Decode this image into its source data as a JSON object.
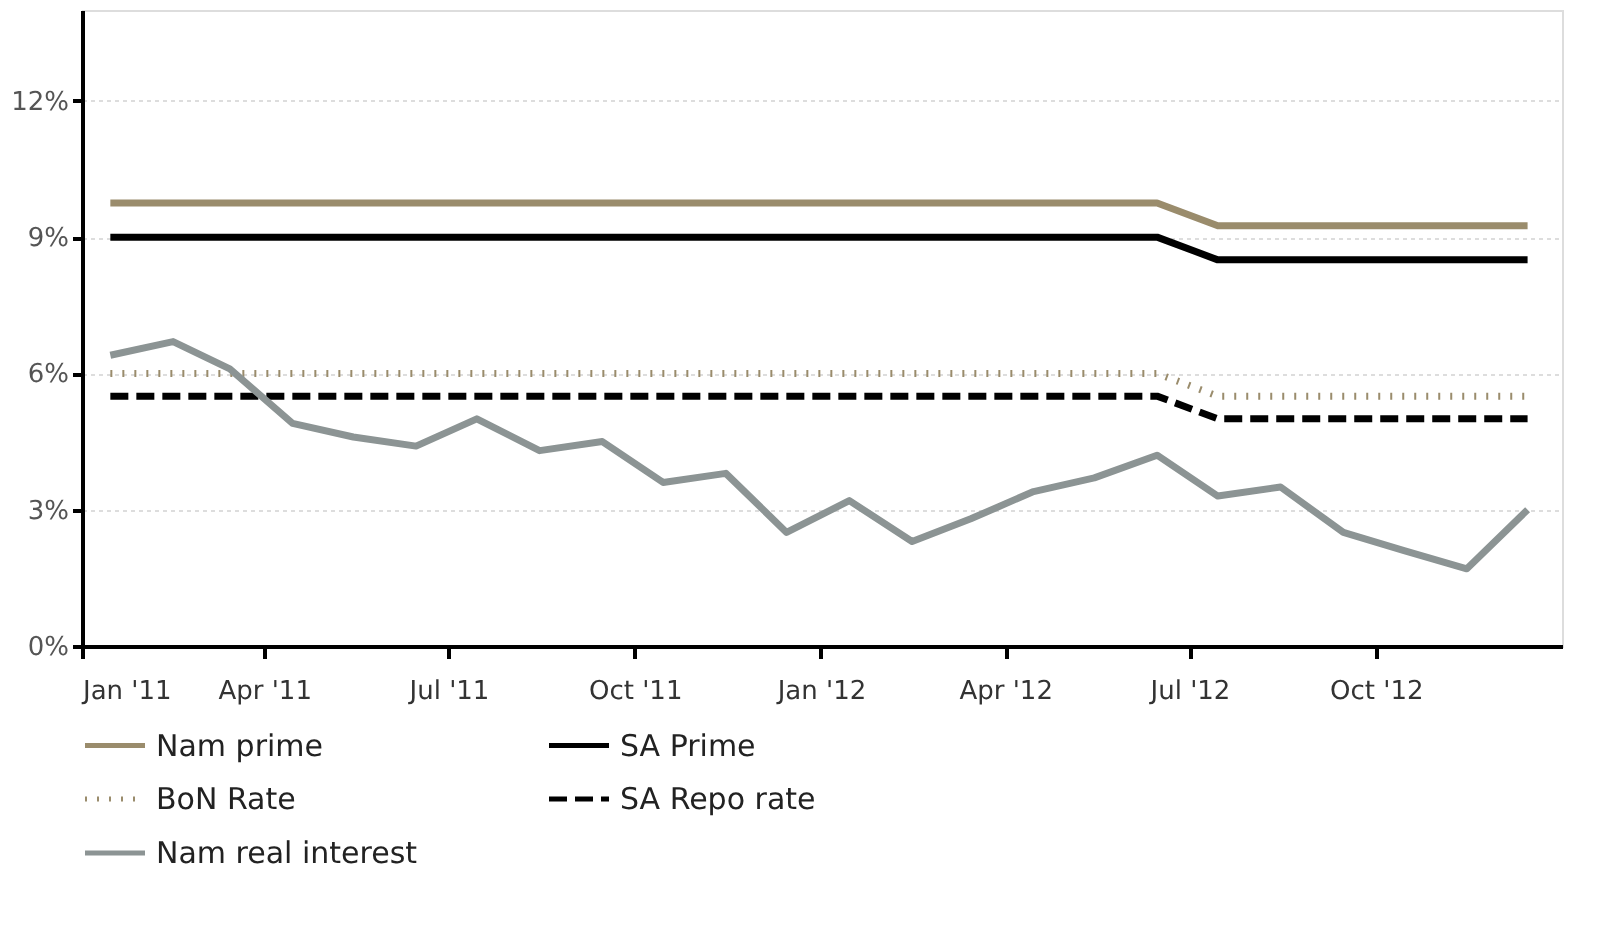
{
  "chart_data": {
    "type": "line",
    "x": [
      "2011-01-15",
      "2011-02-15",
      "2011-03-15",
      "2011-04-15",
      "2011-05-15",
      "2011-06-15",
      "2011-07-15",
      "2011-08-15",
      "2011-09-15",
      "2011-10-15",
      "2011-11-15",
      "2011-12-15",
      "2012-01-15",
      "2012-02-15",
      "2012-03-15",
      "2012-04-15",
      "2012-05-15",
      "2012-06-15",
      "2012-07-15",
      "2012-08-15",
      "2012-09-15",
      "2012-10-15",
      "2012-11-15",
      "2012-12-15"
    ],
    "series": [
      {
        "name": "Nam prime",
        "color": "#9a8c6c",
        "line_style": "solid",
        "values": [
          9.75,
          9.75,
          9.75,
          9.75,
          9.75,
          9.75,
          9.75,
          9.75,
          9.75,
          9.75,
          9.75,
          9.75,
          9.75,
          9.75,
          9.75,
          9.75,
          9.75,
          9.75,
          9.25,
          9.25,
          9.25,
          9.25,
          9.25,
          9.25
        ]
      },
      {
        "name": "SA Prime",
        "color": "#000000",
        "line_style": "solid",
        "values": [
          9,
          9,
          9,
          9,
          9,
          9,
          9,
          9,
          9,
          9,
          9,
          9,
          9,
          9,
          9,
          9,
          9,
          9,
          8.5,
          8.5,
          8.5,
          8.5,
          8.5,
          8.5
        ]
      },
      {
        "name": "BoN Rate",
        "color": "#9a8c6c",
        "line_style": "dotted",
        "values": [
          6,
          6,
          6,
          6,
          6,
          6,
          6,
          6,
          6,
          6,
          6,
          6,
          6,
          6,
          6,
          6,
          6,
          6,
          5.5,
          5.5,
          5.5,
          5.5,
          5.5,
          5.5
        ]
      },
      {
        "name": "SA Repo rate",
        "color": "#000000",
        "line_style": "dashed",
        "values": [
          5.5,
          5.5,
          5.5,
          5.5,
          5.5,
          5.5,
          5.5,
          5.5,
          5.5,
          5.5,
          5.5,
          5.5,
          5.5,
          5.5,
          5.5,
          5.5,
          5.5,
          5.5,
          5,
          5,
          5,
          5,
          5,
          5
        ]
      },
      {
        "name": "Nam real interest",
        "color": "#8c9494",
        "line_style": "solid",
        "values": [
          6.4,
          6.7,
          6.1,
          4.9,
          4.6,
          4.4,
          5.0,
          4.3,
          4.5,
          3.6,
          3.8,
          2.5,
          3.2,
          2.3,
          2.8,
          3.4,
          3.7,
          4.2,
          3.3,
          3.5,
          2.5,
          2.1,
          1.7,
          3.0
        ]
      }
    ],
    "xlim": [
      "2011-01-01",
      "2013-01-01"
    ],
    "xticks": [
      {
        "value": "2011-01-01",
        "label": "Jan '11"
      },
      {
        "value": "2011-04-01",
        "label": "Apr '11"
      },
      {
        "value": "2011-07-01",
        "label": "Jul '11"
      },
      {
        "value": "2011-10-01",
        "label": "Oct '11"
      },
      {
        "value": "2012-01-01",
        "label": "Jan '12"
      },
      {
        "value": "2012-04-01",
        "label": "Apr '12"
      },
      {
        "value": "2012-07-01",
        "label": "Jul '12"
      },
      {
        "value": "2012-10-01",
        "label": "Oct '12"
      }
    ],
    "ylim": [
      0,
      14
    ],
    "yticks": [
      {
        "value": 0,
        "label": "0%"
      },
      {
        "value": 3,
        "label": "3%"
      },
      {
        "value": 6,
        "label": "6%"
      },
      {
        "value": 9,
        "label": "9%"
      },
      {
        "value": 12,
        "label": "12%"
      }
    ],
    "grid": "y",
    "legend": "bottom",
    "marker": "none"
  }
}
